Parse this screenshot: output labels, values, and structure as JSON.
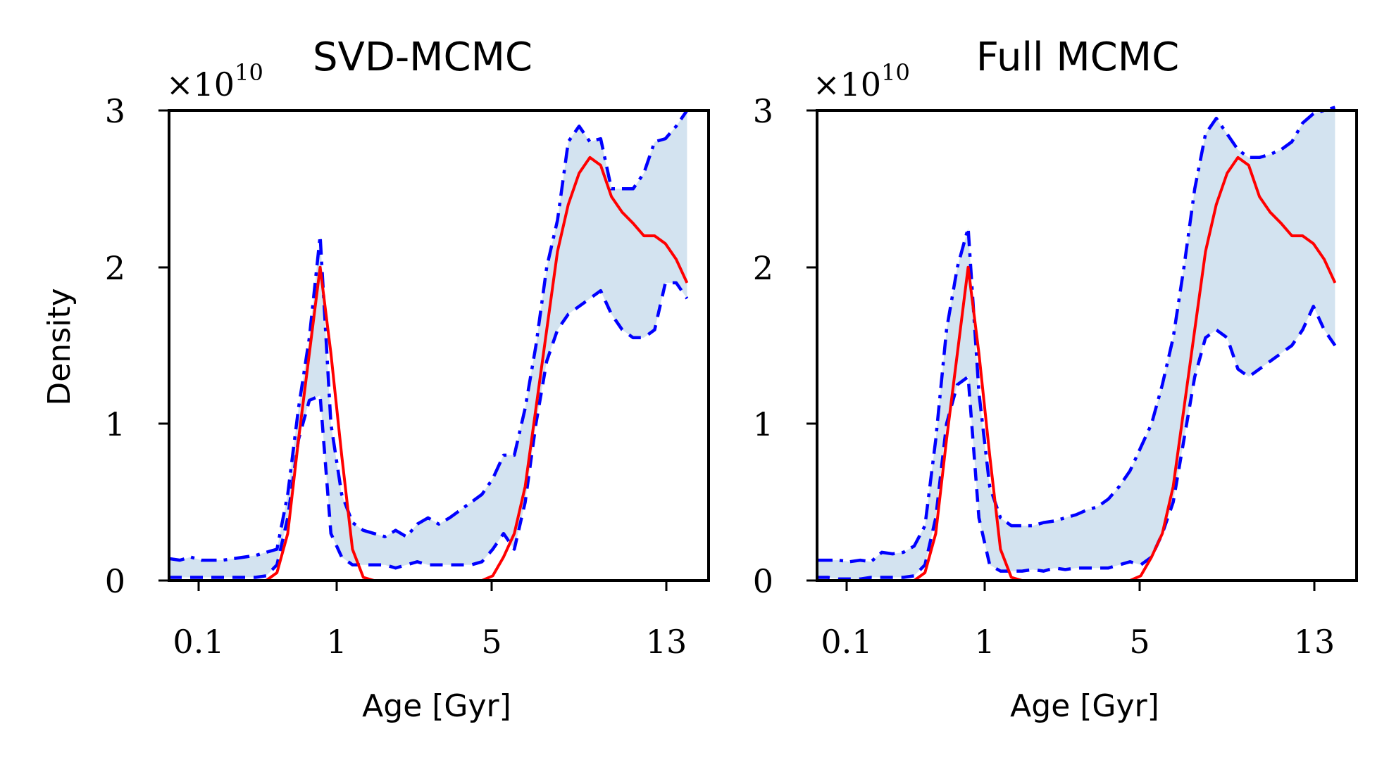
{
  "chart_data": [
    {
      "type": "line",
      "title": "SVD-MCMC",
      "xlabel": "Age [Gyr]",
      "ylabel": "Density",
      "y_multiplier": "×10",
      "y_multiplier_exp": "10",
      "x_axis_scale": "custom (ticks 0.1, 1, 5, 13)",
      "x_ticks": [
        0.1,
        1,
        5,
        13
      ],
      "x_tick_labels": [
        "0.1",
        "1",
        "5",
        "13"
      ],
      "ylim": [
        0,
        3
      ],
      "y_ticks": [
        0,
        1,
        2,
        3
      ],
      "y_tick_labels": [
        "0",
        "1",
        "2",
        "3"
      ],
      "x_index_range": [
        0,
        50
      ],
      "x_index_ticks": [
        2,
        14.7,
        29.1,
        45.2
      ],
      "grid": false,
      "series": [
        {
          "role": "upper-dashdot",
          "color": "#0000ff",
          "style": "dashdot",
          "x": [
            0,
            1,
            2,
            3,
            4,
            5,
            6,
            7,
            8,
            9,
            10,
            11,
            12,
            13,
            14,
            15,
            16,
            17,
            18,
            19,
            20,
            21,
            22,
            23,
            24,
            25,
            26,
            27,
            28,
            29,
            30,
            31,
            32,
            33,
            34,
            35,
            36,
            37,
            38,
            39,
            40,
            41,
            42,
            43,
            44,
            45,
            46,
            47,
            48
          ],
          "values": [
            0.14,
            0.13,
            0.15,
            0.13,
            0.13,
            0.13,
            0.14,
            0.15,
            0.16,
            0.18,
            0.2,
            0.55,
            1.1,
            1.55,
            2.2,
            1.0,
            0.55,
            0.37,
            0.32,
            0.3,
            0.28,
            0.32,
            0.28,
            0.36,
            0.4,
            0.36,
            0.4,
            0.45,
            0.5,
            0.55,
            0.65,
            0.8,
            0.8,
            1.1,
            1.5,
            2.0,
            2.3,
            2.8,
            2.9,
            2.8,
            2.82,
            2.5,
            2.5,
            2.5,
            2.6,
            2.8,
            2.82,
            2.9,
            3.0
          ]
        },
        {
          "role": "lower-dashed",
          "color": "#0000ff",
          "style": "dashed",
          "x": [
            0,
            1,
            2,
            3,
            4,
            5,
            6,
            7,
            8,
            9,
            10,
            11,
            12,
            13,
            14,
            15,
            16,
            17,
            18,
            19,
            20,
            21,
            22,
            23,
            24,
            25,
            26,
            27,
            28,
            29,
            30,
            31,
            32,
            33,
            34,
            35,
            36,
            37,
            38,
            39,
            40,
            41,
            42,
            43,
            44,
            45,
            46,
            47,
            48
          ],
          "values": [
            0.02,
            0.02,
            0.02,
            0.02,
            0.02,
            0.02,
            0.02,
            0.02,
            0.02,
            0.03,
            0.1,
            0.4,
            0.9,
            1.15,
            1.18,
            0.3,
            0.15,
            0.1,
            0.1,
            0.1,
            0.1,
            0.08,
            0.1,
            0.12,
            0.1,
            0.1,
            0.1,
            0.1,
            0.1,
            0.12,
            0.2,
            0.3,
            0.2,
            0.5,
            1.0,
            1.4,
            1.6,
            1.7,
            1.75,
            1.8,
            1.85,
            1.7,
            1.6,
            1.55,
            1.55,
            1.6,
            1.9,
            1.9,
            1.8
          ]
        },
        {
          "role": "median-solid",
          "color": "#ff0000",
          "style": "solid",
          "x": [
            0,
            1,
            2,
            3,
            4,
            5,
            6,
            7,
            8,
            9,
            10,
            11,
            12,
            13,
            14,
            15,
            16,
            17,
            18,
            19,
            20,
            21,
            22,
            23,
            24,
            25,
            26,
            27,
            28,
            29,
            30,
            31,
            32,
            33,
            34,
            35,
            36,
            37,
            38,
            39,
            40,
            41,
            42,
            43,
            44,
            45,
            46,
            47,
            48
          ],
          "values": [
            0,
            0,
            0,
            0,
            0,
            0,
            0,
            0,
            0,
            0,
            0.05,
            0.3,
            0.9,
            1.45,
            2.0,
            1.45,
            0.8,
            0.2,
            0.02,
            0,
            0,
            0,
            0,
            0,
            0,
            0,
            0,
            0,
            0,
            0,
            0.03,
            0.15,
            0.3,
            0.6,
            1.1,
            1.6,
            2.1,
            2.4,
            2.6,
            2.7,
            2.65,
            2.45,
            2.35,
            2.28,
            2.2,
            2.2,
            2.15,
            2.05,
            1.9
          ]
        }
      ]
    },
    {
      "type": "line",
      "title": "Full MCMC",
      "xlabel": "Age [Gyr]",
      "ylabel": "",
      "y_multiplier": "×10",
      "y_multiplier_exp": "10",
      "x_axis_scale": "custom (ticks 0.1, 1, 5, 13)",
      "x_ticks": [
        0.1,
        1,
        5,
        13
      ],
      "x_tick_labels": [
        "0.1",
        "1",
        "5",
        "13"
      ],
      "ylim": [
        0,
        3
      ],
      "y_ticks": [
        0,
        1,
        2,
        3
      ],
      "y_tick_labels": [
        "0",
        "1",
        "2",
        "3"
      ],
      "x_index_range": [
        0,
        50
      ],
      "x_index_ticks": [
        2,
        14.7,
        29.1,
        45.2
      ],
      "grid": false,
      "series": [
        {
          "role": "upper-dashdot",
          "color": "#0000ff",
          "style": "dashdot",
          "x": [
            0,
            1,
            2,
            3,
            4,
            5,
            6,
            7,
            8,
            9,
            10,
            11,
            12,
            13,
            14,
            15,
            16,
            17,
            18,
            19,
            20,
            21,
            22,
            23,
            24,
            25,
            26,
            27,
            28,
            29,
            30,
            31,
            32,
            33,
            34,
            35,
            36,
            37,
            38,
            39,
            40,
            41,
            42,
            43,
            44,
            45,
            46,
            47,
            48
          ],
          "values": [
            0.13,
            0.13,
            0.13,
            0.12,
            0.13,
            0.12,
            0.18,
            0.17,
            0.18,
            0.22,
            0.35,
            0.9,
            1.6,
            2.0,
            2.25,
            1.2,
            0.6,
            0.4,
            0.35,
            0.35,
            0.35,
            0.37,
            0.38,
            0.4,
            0.42,
            0.45,
            0.47,
            0.52,
            0.6,
            0.7,
            0.85,
            1.0,
            1.25,
            1.55,
            2.0,
            2.5,
            2.85,
            2.95,
            2.85,
            2.75,
            2.7,
            2.7,
            2.72,
            2.75,
            2.8,
            2.92,
            2.98,
            3.0,
            3.02
          ]
        },
        {
          "role": "lower-dashed",
          "color": "#0000ff",
          "style": "dashed",
          "x": [
            0,
            1,
            2,
            3,
            4,
            5,
            6,
            7,
            8,
            9,
            10,
            11,
            12,
            13,
            14,
            15,
            16,
            17,
            18,
            19,
            20,
            21,
            22,
            23,
            24,
            25,
            26,
            27,
            28,
            29,
            30,
            31,
            32,
            33,
            34,
            35,
            36,
            37,
            38,
            39,
            40,
            41,
            42,
            43,
            44,
            45,
            46,
            47,
            48
          ],
          "values": [
            0.02,
            0.02,
            0.01,
            0.01,
            0.01,
            0.02,
            0.02,
            0.02,
            0.02,
            0.03,
            0.1,
            0.4,
            1.0,
            1.25,
            1.3,
            0.4,
            0.1,
            0.06,
            0.06,
            0.06,
            0.07,
            0.06,
            0.08,
            0.07,
            0.08,
            0.08,
            0.08,
            0.08,
            0.1,
            0.12,
            0.1,
            0.15,
            0.3,
            0.5,
            0.9,
            1.3,
            1.55,
            1.6,
            1.55,
            1.35,
            1.3,
            1.35,
            1.4,
            1.45,
            1.5,
            1.6,
            1.75,
            1.6,
            1.5
          ]
        },
        {
          "role": "median-solid",
          "color": "#ff0000",
          "style": "solid",
          "x": [
            0,
            1,
            2,
            3,
            4,
            5,
            6,
            7,
            8,
            9,
            10,
            11,
            12,
            13,
            14,
            15,
            16,
            17,
            18,
            19,
            20,
            21,
            22,
            23,
            24,
            25,
            26,
            27,
            28,
            29,
            30,
            31,
            32,
            33,
            34,
            35,
            36,
            37,
            38,
            39,
            40,
            41,
            42,
            43,
            44,
            45,
            46,
            47,
            48
          ],
          "values": [
            0,
            0,
            0,
            0,
            0,
            0,
            0,
            0,
            0,
            0,
            0.05,
            0.3,
            0.9,
            1.45,
            2.0,
            1.45,
            0.8,
            0.2,
            0.02,
            0,
            0,
            0,
            0,
            0,
            0,
            0,
            0,
            0,
            0,
            0,
            0.03,
            0.15,
            0.3,
            0.6,
            1.1,
            1.6,
            2.1,
            2.4,
            2.6,
            2.7,
            2.65,
            2.45,
            2.35,
            2.28,
            2.2,
            2.2,
            2.15,
            2.05,
            1.9
          ]
        }
      ]
    }
  ],
  "colors": {
    "band_fill": "#d3e3f0",
    "dashdot": "#0000ff",
    "dashed": "#0000ff",
    "median": "#ff0000",
    "axes": "#000000"
  }
}
